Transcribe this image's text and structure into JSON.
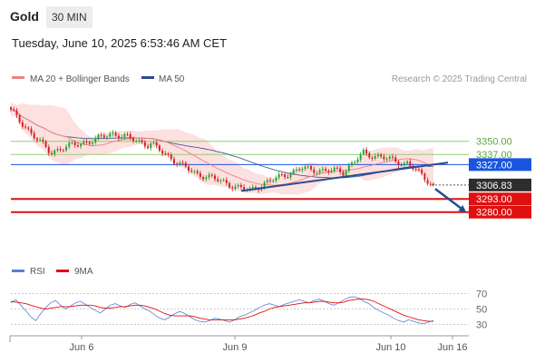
{
  "header": {
    "symbol": "Gold",
    "interval": "30 MIN",
    "timestamp": "Tuesday, June 10, 2025 6:53:46 AM CET"
  },
  "legend": {
    "ma20_label": "MA 20 + Bollinger Bands",
    "ma50_label": "MA 50",
    "copyright": "Research © 2025 Trading Central",
    "rsi_label": "RSI",
    "rsi_ma_label": "9MA"
  },
  "colors": {
    "ma20": "#f08080",
    "bollinger_fill": "#fde0e0",
    "ma50": "#2e4b8f",
    "candle_up": "#22a82a",
    "candle_down": "#d42020",
    "resistance": "#8fcf72",
    "pivot": "#1a55e0",
    "support": "#e01010",
    "current": "#2d2d2d",
    "rsi": "#5a7fd6",
    "rsi_ma": "#e01010"
  },
  "chart_data": [
    {
      "type": "candlestick",
      "x_tick_labels": [
        "Jun 6",
        "Jun 9",
        "Jun 10",
        "Jun 16"
      ],
      "ylim": [
        3234,
        3400
      ],
      "segments": [
        {
          "n": 14,
          "from": 3380,
          "to": 3340
        },
        {
          "n": 22,
          "from": 3340,
          "to": 3357
        },
        {
          "n": 12,
          "from": 3357,
          "to": 3347
        },
        {
          "n": 16,
          "from": 3347,
          "to": 3318
        },
        {
          "n": 18,
          "from": 3318,
          "to": 3302
        },
        {
          "n": 18,
          "from": 3302,
          "to": 3323
        },
        {
          "n": 14,
          "from": 3323,
          "to": 3320
        },
        {
          "n": 8,
          "from": 3320,
          "to": 3338
        },
        {
          "n": 14,
          "from": 3338,
          "to": 3328
        },
        {
          "n": 10,
          "from": 3328,
          "to": 3306.8
        }
      ],
      "levels": [
        {
          "label": "3350.00",
          "value": 3350,
          "kind": "resistance"
        },
        {
          "label": "3337.00",
          "value": 3337,
          "kind": "resistance"
        },
        {
          "label": "3327.00",
          "value": 3327,
          "kind": "pivot"
        },
        {
          "label": "3306.83",
          "value": 3306.83,
          "kind": "current"
        },
        {
          "label": "3293.00",
          "value": 3293,
          "kind": "support"
        },
        {
          "label": "3280.00",
          "value": 3280,
          "kind": "support"
        }
      ],
      "trendline": {
        "from_bar": 79,
        "from_value": 3301,
        "to_bar": 150,
        "to_value": 3329
      }
    },
    {
      "type": "line",
      "series": [
        "RSI",
        "9MA"
      ],
      "y_tick_labels": [
        "70",
        "50",
        "30"
      ],
      "ylim": [
        20,
        80
      ],
      "levels": [
        70,
        50,
        30
      ],
      "rsi_points": [
        58,
        62,
        55,
        48,
        40,
        35,
        44,
        52,
        58,
        61,
        55,
        50,
        54,
        58,
        60,
        56,
        52,
        48,
        45,
        50,
        55,
        57,
        54,
        52,
        56,
        58,
        54,
        50,
        47,
        42,
        38,
        36,
        40,
        44,
        47,
        44,
        40,
        36,
        34,
        33,
        35,
        38,
        37,
        35,
        33,
        36,
        40,
        42,
        45,
        48,
        52,
        55,
        57,
        55,
        53,
        56,
        58,
        60,
        62,
        60,
        58,
        61,
        63,
        60,
        57,
        55,
        58,
        62,
        65,
        66,
        64,
        60,
        57,
        52,
        48,
        45,
        42,
        38,
        35,
        33,
        36,
        34,
        32,
        31,
        33,
        35
      ],
      "rsi_ma_points": [
        60,
        59,
        58,
        57,
        55,
        53,
        51,
        50,
        51,
        52,
        53,
        53,
        53,
        54,
        55,
        55,
        55,
        54,
        52,
        51,
        51,
        52,
        53,
        53,
        54,
        55,
        55,
        54,
        52,
        50,
        47,
        44,
        42,
        41,
        41,
        41,
        41,
        40,
        38,
        37,
        36,
        36,
        36,
        36,
        36,
        36,
        37,
        38,
        40,
        42,
        45,
        47,
        50,
        52,
        53,
        54,
        55,
        56,
        57,
        58,
        58,
        59,
        60,
        60,
        59,
        58,
        58,
        59,
        61,
        62,
        63,
        63,
        62,
        60,
        57,
        54,
        51,
        48,
        45,
        42,
        40,
        38,
        36,
        35,
        34,
        34
      ]
    }
  ]
}
